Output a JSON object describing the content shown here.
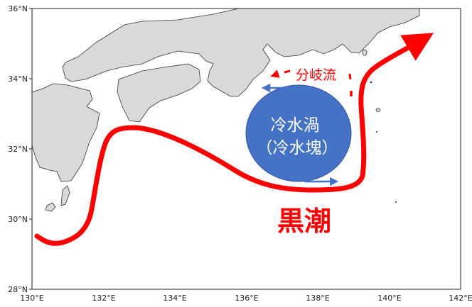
{
  "map": {
    "lat_labels": [
      "36°N",
      "34°N",
      "32°N",
      "30°N",
      "28°N"
    ],
    "lon_labels": [
      "130°E",
      "132°E",
      "134°E",
      "136°E",
      "138°E",
      "140°E",
      "142°E"
    ],
    "extent": {
      "lon": [
        130,
        142
      ],
      "lat": [
        28,
        36
      ]
    },
    "colors": {
      "land": "#d9d9d9",
      "current": "#ff0000",
      "eddy": "#4472c4",
      "eddy_text": "#ffffff"
    }
  },
  "annotations": {
    "kuroshio": "黒潮",
    "branch_current": "分岐流",
    "eddy_line1": "冷水渦",
    "eddy_line2": "（冷水塊）"
  }
}
